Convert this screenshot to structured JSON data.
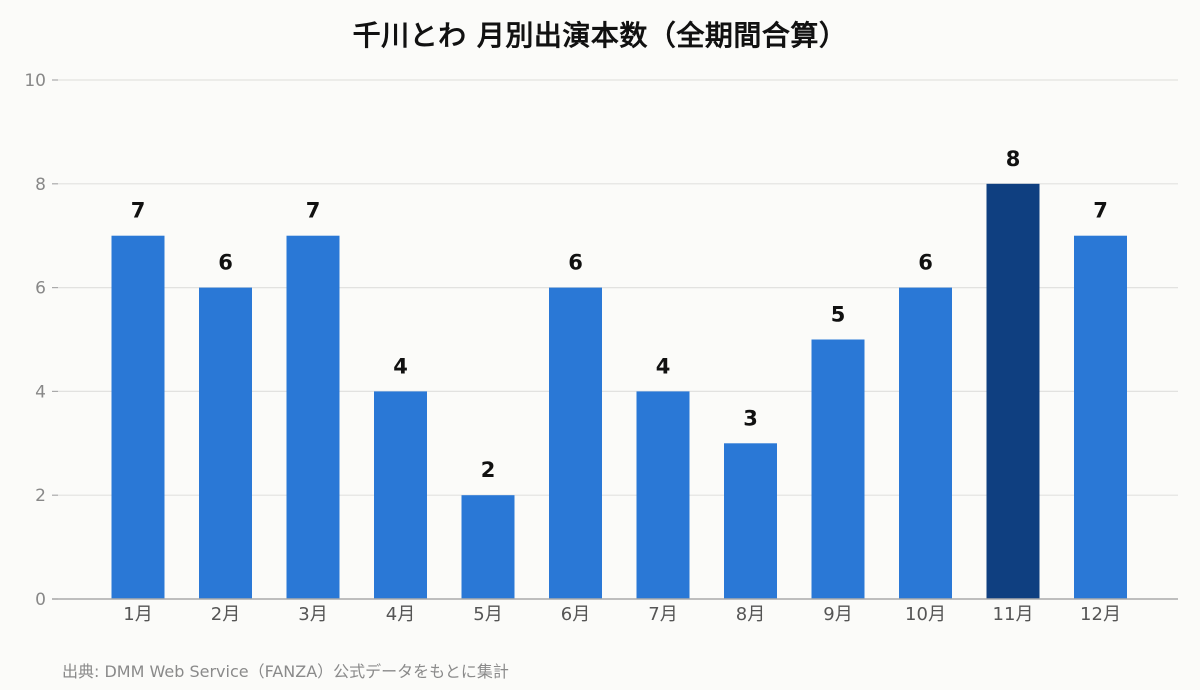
{
  "title": "千川とわ 月別出演本数（全期間合算）",
  "source": "出典: DMM Web Service（FANZA）公式データをもとに集計",
  "colors": {
    "bar": "#2a78d6",
    "highlight": "#0f3f80",
    "grid": "#e2e2e0",
    "axis": "#aaaaaa",
    "tick_text": "#888888",
    "category_text": "#555555",
    "label_text": "#111111",
    "background": "#fbfbf9"
  },
  "chart_data": {
    "type": "bar",
    "title": "千川とわ 月別出演本数（全期間合算）",
    "xlabel": "",
    "ylabel": "",
    "categories": [
      "1月",
      "2月",
      "3月",
      "4月",
      "5月",
      "6月",
      "7月",
      "8月",
      "9月",
      "10月",
      "11月",
      "12月"
    ],
    "values": [
      7,
      6,
      7,
      4,
      2,
      6,
      4,
      3,
      5,
      6,
      8,
      7
    ],
    "highlight_category": "11月",
    "ylim": [
      0,
      10
    ],
    "yticks": [
      0,
      2,
      4,
      6,
      8,
      10
    ],
    "grid": true,
    "data_labels": true
  }
}
